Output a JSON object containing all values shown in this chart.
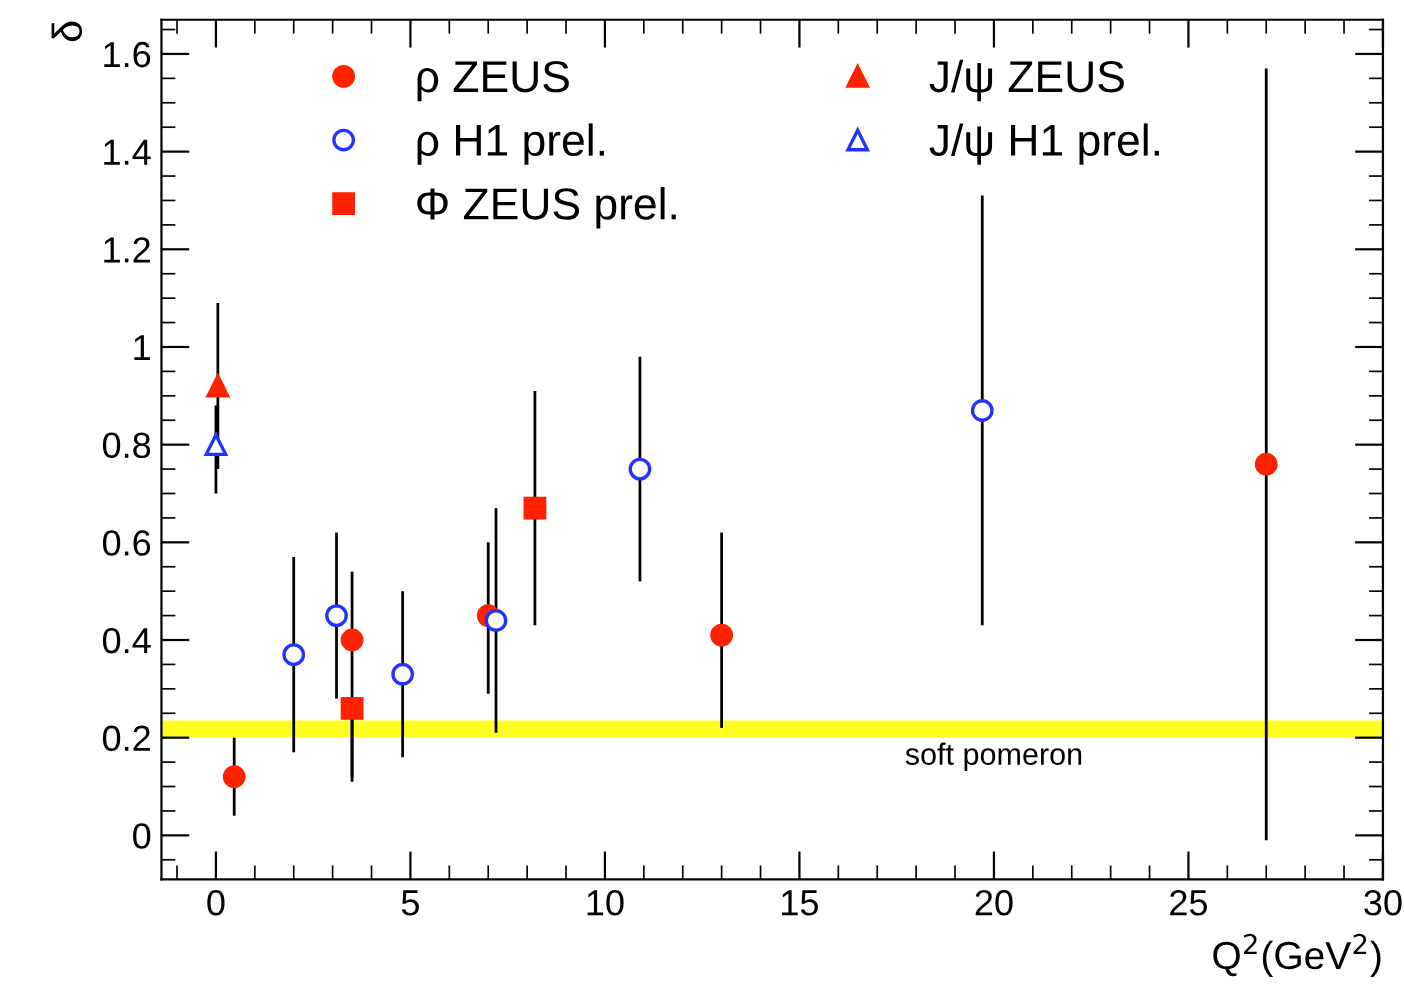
{
  "chart_data": {
    "type": "scatter",
    "xlabel": "Q$^{2}$(GeV$^{2}$)",
    "ylabel": "δ",
    "xlim": [
      -1.4,
      30
    ],
    "ylim": [
      -0.09,
      1.67
    ],
    "xticks": [
      0,
      5,
      10,
      15,
      20,
      25,
      30
    ],
    "yticks": [
      0,
      0.2,
      0.4,
      0.6,
      0.8,
      1,
      1.2,
      1.4,
      1.6
    ],
    "legend": "top left",
    "grid": false,
    "series": [
      {
        "name": "ρ ZEUS",
        "color": "#ff2200",
        "marker": "circle",
        "x": [
          0.47,
          3.5,
          7.0,
          13.0,
          27.0
        ],
        "values": [
          0.12,
          0.4,
          0.45,
          0.41,
          0.76
        ],
        "errors": [
          [
            0.04,
            0.2
          ],
          [
            0.12,
            0.54
          ],
          [
            0.29,
            0.6
          ],
          [
            0.22,
            0.62
          ],
          [
            -0.01,
            1.57
          ]
        ]
      },
      {
        "name": "ρ H1 prel.",
        "color": "#2233ff",
        "marker": "circle",
        "x": [
          2.0,
          3.1,
          4.8,
          7.2,
          10.9,
          19.7
        ],
        "values": [
          0.37,
          0.45,
          0.33,
          0.44,
          0.75,
          0.87
        ],
        "errors": [
          [
            0.17,
            0.57
          ],
          [
            0.28,
            0.62
          ],
          [
            0.16,
            0.5
          ],
          [
            0.21,
            0.67
          ],
          [
            0.52,
            0.98
          ],
          [
            0.43,
            1.31
          ]
        ]
      },
      {
        "name": "Φ ZEUS prel.",
        "color": "#ff2200",
        "marker": "square",
        "x": [
          3.5,
          8.2
        ],
        "values": [
          0.26,
          0.67
        ],
        "errors": [
          [
            0.11,
            0.26
          ],
          [
            0.43,
            0.91
          ]
        ]
      },
      {
        "name": "J/ψ ZEUS",
        "color": "#ff2200",
        "marker": "triangle",
        "x": [
          0.05
        ],
        "values": [
          0.92
        ],
        "errors": [
          [
            0.75,
            1.09
          ]
        ]
      },
      {
        "name": "J/ψ H1 prel.",
        "color": "#2233ff",
        "marker": "triangle",
        "x": [
          0.0
        ],
        "values": [
          0.8
        ],
        "errors": [
          [
            0.7,
            0.88
          ]
        ]
      }
    ],
    "bands": [
      {
        "axis": "y",
        "from": 0.2,
        "to": 0.235,
        "label": "soft pomeron",
        "color": "#ffff22"
      }
    ]
  }
}
